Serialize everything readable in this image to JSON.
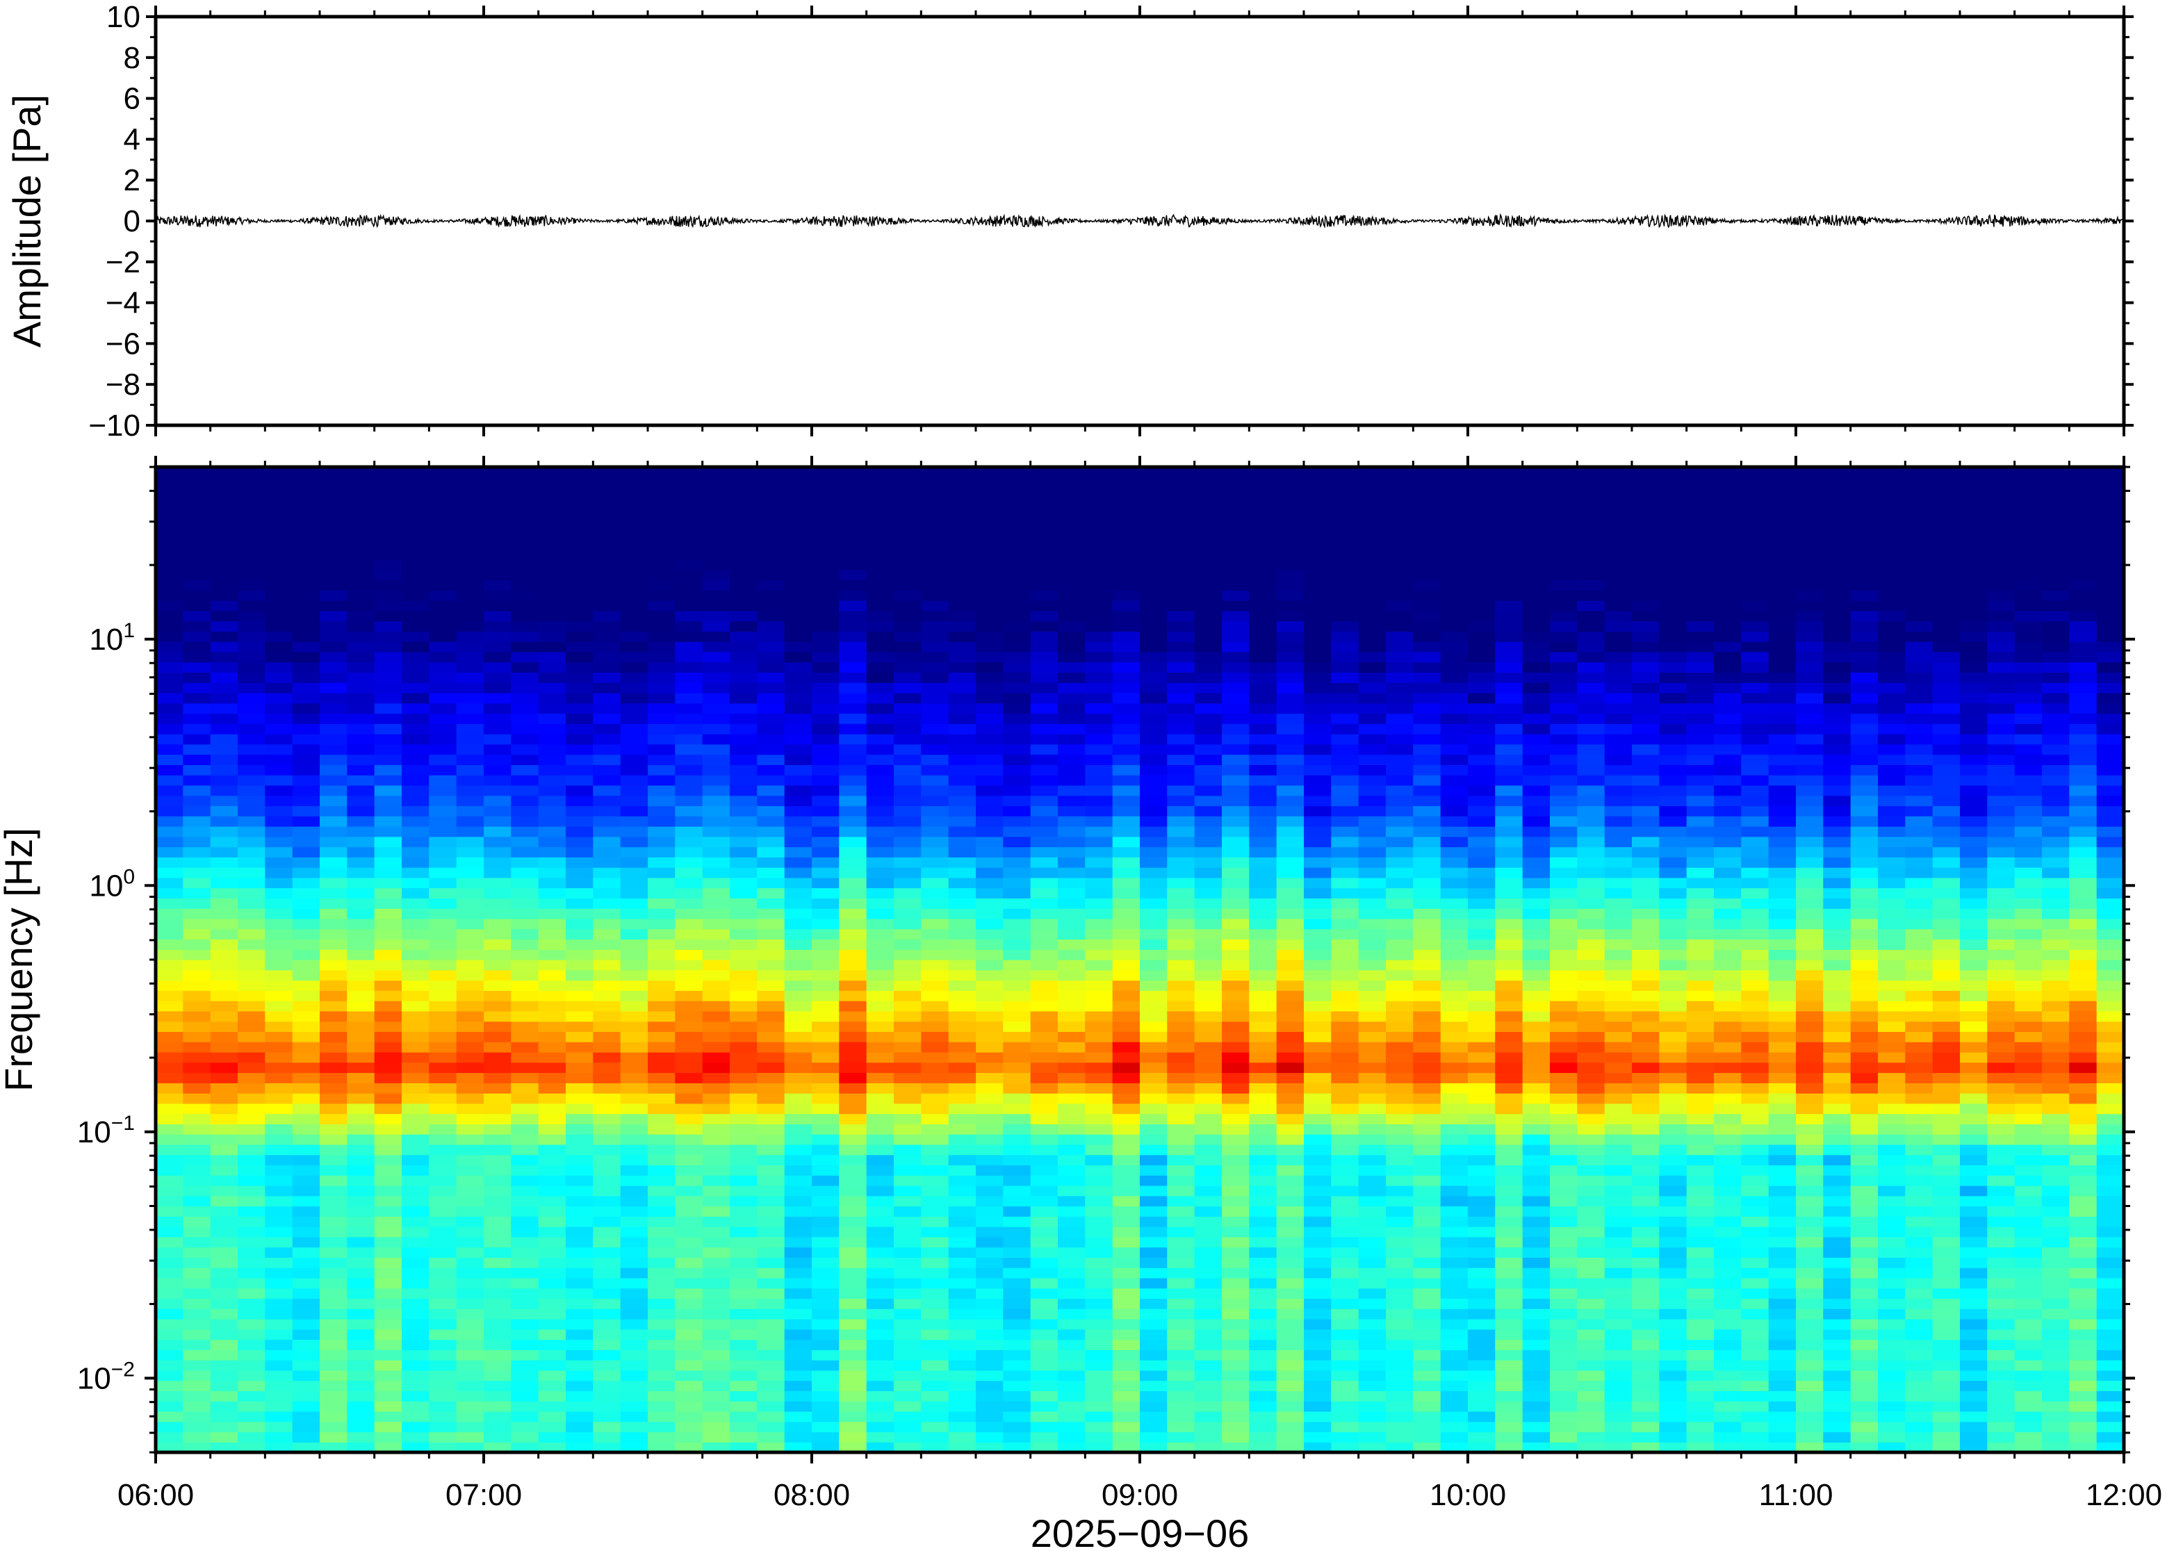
{
  "chart_data": [
    {
      "type": "line",
      "ylabel": "Amplitude [Pa]",
      "ylim": [
        -10,
        10
      ],
      "yticks": [
        10,
        8,
        6,
        4,
        2,
        0,
        -2,
        -4,
        -6,
        -8,
        -10
      ],
      "ytick_labels": [
        "10",
        "8",
        "6",
        "4",
        "2",
        "0",
        "−2",
        "−4",
        "−6",
        "−8",
        "−10"
      ],
      "xlim": [
        "2025-09-06T06:00",
        "2025-09-06T12:00"
      ],
      "series": [
        {
          "description_hidden": "",
          "values_envelope_pa": 0.3,
          "color": "#000000"
        }
      ],
      "grid": false
    },
    {
      "type": "heatmap",
      "ylabel": "Frequency [Hz]",
      "yscale": "log",
      "ylim": [
        0.005,
        50
      ],
      "ytick_labels": [
        {
          "base": "10",
          "exp": "1",
          "value": 10
        },
        {
          "base": "10",
          "exp": "0",
          "value": 1
        },
        {
          "base": "10",
          "exp": "−1",
          "value": 0.1
        },
        {
          "base": "10",
          "exp": "−2",
          "value": 0.01
        }
      ],
      "xlim": [
        "2025-09-06T06:00",
        "2025-09-06T12:00"
      ],
      "xtick_labels": [
        "06:00",
        "07:00",
        "08:00",
        "09:00",
        "10:00",
        "11:00",
        "12:00"
      ],
      "xlabel": "2025−09−06",
      "colormap": "jet",
      "peak_band_hz": [
        0.15,
        0.22
      ],
      "colors": {
        "low": "#0a0a6e",
        "high": "#f57a3c"
      },
      "grid": false
    }
  ]
}
